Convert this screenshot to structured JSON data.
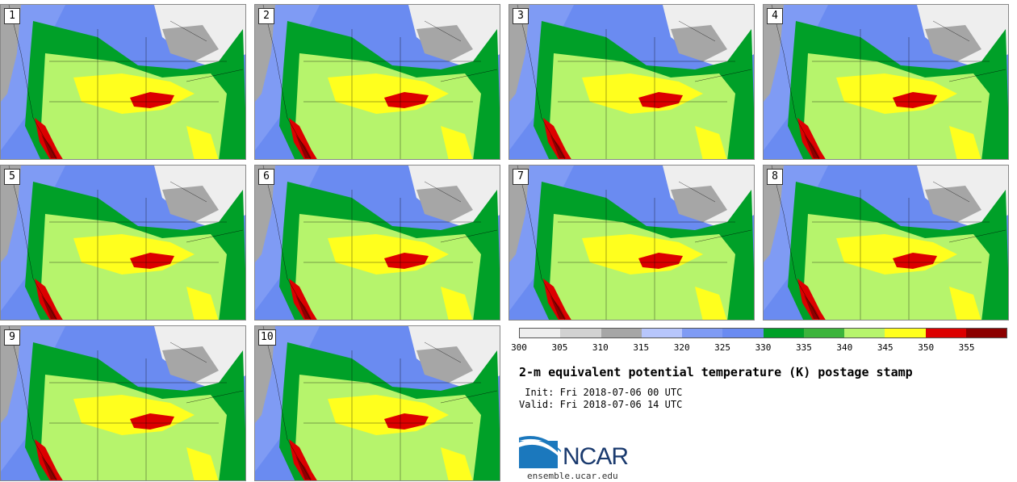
{
  "figure": {
    "title": "2-m equivalent potential temperature (K) postage stamp",
    "init": " Init: Fri 2018-07-06 00 UTC",
    "valid": "Valid: Fri 2018-07-06 14 UTC"
  },
  "members": [
    "1",
    "2",
    "3",
    "4",
    "5",
    "6",
    "7",
    "8",
    "9",
    "10"
  ],
  "colorbar": {
    "colors": [
      "#eeeeee",
      "#d2d2d2",
      "#a6a6a6",
      "#b7c6fc",
      "#7f9bf4",
      "#6a8bf1",
      "#00a028",
      "#3cb43c",
      "#b6f46c",
      "#ffff1e",
      "#dc0000",
      "#8c0000"
    ],
    "ticks": [
      "300",
      "305",
      "310",
      "315",
      "320",
      "325",
      "330",
      "335",
      "340",
      "345",
      "350",
      "355"
    ]
  },
  "branding": {
    "org": "NCAR",
    "url": "ensemble.ucar.edu"
  }
}
